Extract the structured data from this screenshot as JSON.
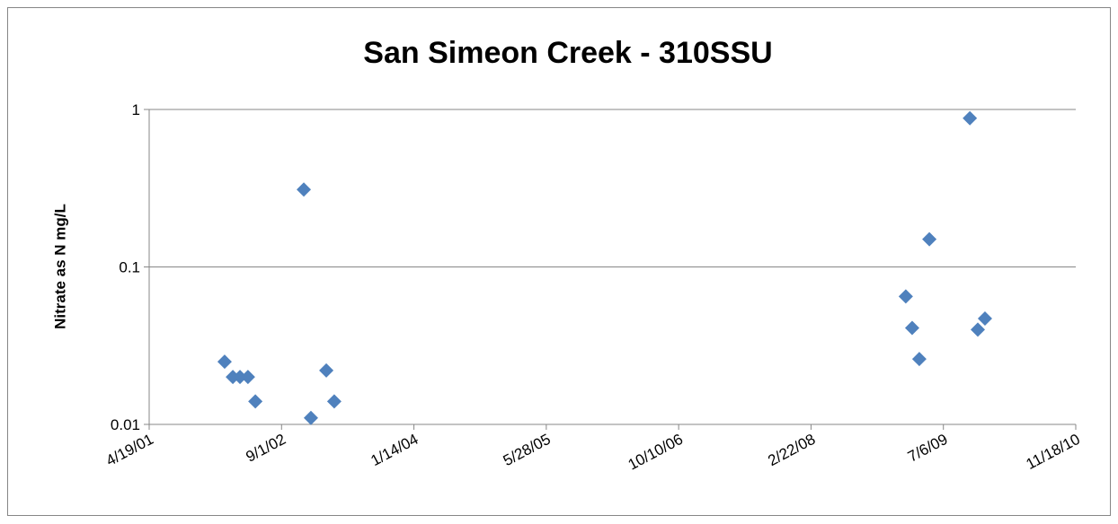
{
  "chart_data": {
    "type": "scatter",
    "title": "San Simeon Creek - 310SSU",
    "y_label": "Nitrate as N mg/L",
    "series": [
      {
        "name": "Nitrate as N",
        "color": "#4f81bd",
        "x": [
          "2002-01-29",
          "2002-03-01",
          "2002-03-28",
          "2002-04-27",
          "2002-05-25",
          "2002-11-24",
          "2002-12-21",
          "2003-02-17",
          "2003-03-19",
          "2009-02-14",
          "2009-03-10",
          "2009-04-06",
          "2009-05-14",
          "2009-10-14",
          "2009-11-13",
          "2009-12-10"
        ],
        "values": [
          0.025,
          0.02,
          0.02,
          0.02,
          0.014,
          0.31,
          0.011,
          0.022,
          0.014,
          0.065,
          0.041,
          0.026,
          0.15,
          0.88,
          0.04,
          0.047
        ]
      }
    ],
    "xlim": [
      "2001-04-19",
      "2010-11-18"
    ],
    "xticks": [
      {
        "value": "2001-04-19",
        "label": "4/19/01"
      },
      {
        "value": "2002-09-01",
        "label": "9/1/02"
      },
      {
        "value": "2004-01-14",
        "label": "1/14/04"
      },
      {
        "value": "2005-05-28",
        "label": "5/28/05"
      },
      {
        "value": "2006-10-10",
        "label": "10/10/06"
      },
      {
        "value": "2008-02-22",
        "label": "2/22/08"
      },
      {
        "value": "2009-07-06",
        "label": "7/6/09"
      },
      {
        "value": "2010-11-18",
        "label": "11/18/10"
      }
    ],
    "ylim": [
      0.01,
      1
    ],
    "yticks": [
      0.01,
      0.1,
      1
    ],
    "y_log": true,
    "grid": true
  }
}
